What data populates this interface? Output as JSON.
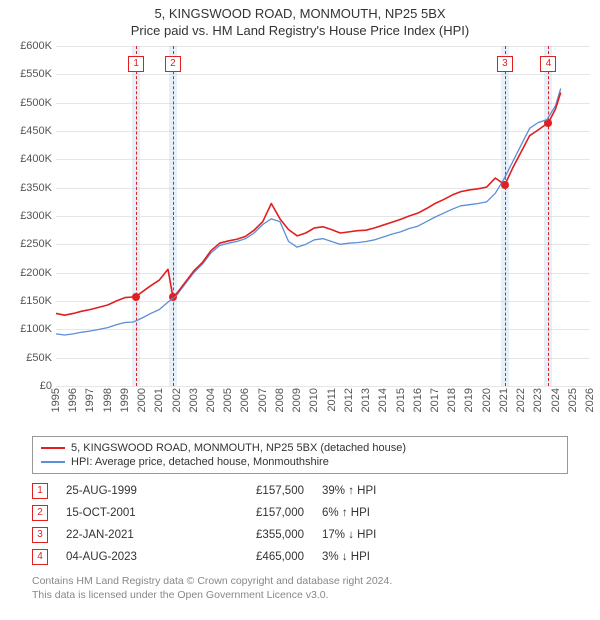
{
  "title": "5, KINGSWOOD ROAD, MONMOUTH, NP25 5BX",
  "subtitle": "Price paid vs. HM Land Registry's House Price Index (HPI)",
  "chart": {
    "type": "line",
    "x_domain": [
      1995,
      2026
    ],
    "y_domain": [
      0,
      600000
    ],
    "y_ticks": [
      0,
      50000,
      100000,
      150000,
      200000,
      250000,
      300000,
      350000,
      400000,
      450000,
      500000,
      550000,
      600000
    ],
    "y_tick_labels": [
      "£0",
      "£50K",
      "£100K",
      "£150K",
      "£200K",
      "£250K",
      "£300K",
      "£350K",
      "£400K",
      "£450K",
      "£500K",
      "£550K",
      "£600K"
    ],
    "x_ticks": [
      1995,
      1996,
      1997,
      1998,
      1999,
      2000,
      2001,
      2002,
      2003,
      2004,
      2005,
      2006,
      2007,
      2008,
      2009,
      2010,
      2011,
      2012,
      2013,
      2014,
      2015,
      2016,
      2017,
      2018,
      2019,
      2020,
      2021,
      2022,
      2023,
      2024,
      2025,
      2026
    ],
    "grid_color": "#e6e6e6",
    "background": "#ffffff",
    "series": [
      {
        "id": "hpi",
        "label": "HPI: Average price, detached house, Monmouthshire",
        "color": "#5b8fd6",
        "width": 1.3,
        "points": [
          [
            1995.0,
            92000
          ],
          [
            1995.5,
            90000
          ],
          [
            1996.0,
            92000
          ],
          [
            1996.5,
            95000
          ],
          [
            1997.0,
            97000
          ],
          [
            1997.5,
            100000
          ],
          [
            1998.0,
            103000
          ],
          [
            1998.5,
            108000
          ],
          [
            1999.0,
            112000
          ],
          [
            1999.5,
            113000
          ],
          [
            2000.0,
            120000
          ],
          [
            2000.5,
            128000
          ],
          [
            2001.0,
            135000
          ],
          [
            2001.5,
            148000
          ],
          [
            2002.0,
            160000
          ],
          [
            2002.5,
            180000
          ],
          [
            2003.0,
            200000
          ],
          [
            2003.5,
            215000
          ],
          [
            2004.0,
            235000
          ],
          [
            2004.5,
            248000
          ],
          [
            2005.0,
            252000
          ],
          [
            2005.5,
            255000
          ],
          [
            2006.0,
            260000
          ],
          [
            2006.5,
            270000
          ],
          [
            2007.0,
            285000
          ],
          [
            2007.5,
            295000
          ],
          [
            2008.0,
            290000
          ],
          [
            2008.5,
            255000
          ],
          [
            2009.0,
            245000
          ],
          [
            2009.5,
            250000
          ],
          [
            2010.0,
            258000
          ],
          [
            2010.5,
            260000
          ],
          [
            2011.0,
            255000
          ],
          [
            2011.5,
            250000
          ],
          [
            2012.0,
            252000
          ],
          [
            2012.5,
            253000
          ],
          [
            2013.0,
            255000
          ],
          [
            2013.5,
            258000
          ],
          [
            2014.0,
            263000
          ],
          [
            2014.5,
            268000
          ],
          [
            2015.0,
            272000
          ],
          [
            2015.5,
            278000
          ],
          [
            2016.0,
            282000
          ],
          [
            2016.5,
            290000
          ],
          [
            2017.0,
            298000
          ],
          [
            2017.5,
            305000
          ],
          [
            2018.0,
            312000
          ],
          [
            2018.5,
            318000
          ],
          [
            2019.0,
            320000
          ],
          [
            2019.5,
            322000
          ],
          [
            2020.0,
            325000
          ],
          [
            2020.5,
            340000
          ],
          [
            2021.0,
            365000
          ],
          [
            2021.5,
            395000
          ],
          [
            2022.0,
            425000
          ],
          [
            2022.5,
            455000
          ],
          [
            2023.0,
            465000
          ],
          [
            2023.5,
            470000
          ],
          [
            2024.0,
            495000
          ],
          [
            2024.3,
            525000
          ]
        ]
      },
      {
        "id": "property",
        "label": "5, KINGSWOOD ROAD, MONMOUTH, NP25 5BX (detached house)",
        "color": "#e02020",
        "width": 1.6,
        "points": [
          [
            1995.0,
            128000
          ],
          [
            1995.5,
            125000
          ],
          [
            1996.0,
            128000
          ],
          [
            1996.5,
            132000
          ],
          [
            1997.0,
            135000
          ],
          [
            1997.5,
            139000
          ],
          [
            1998.0,
            143000
          ],
          [
            1998.5,
            150000
          ],
          [
            1999.0,
            156000
          ],
          [
            1999.65,
            157500
          ],
          [
            2000.0,
            166000
          ],
          [
            2000.5,
            177000
          ],
          [
            2001.0,
            187000
          ],
          [
            2001.5,
            206000
          ],
          [
            2001.79,
            157000
          ],
          [
            2002.0,
            163000
          ],
          [
            2002.5,
            183000
          ],
          [
            2003.0,
            203000
          ],
          [
            2003.5,
            218000
          ],
          [
            2004.0,
            239000
          ],
          [
            2004.5,
            252000
          ],
          [
            2005.0,
            256000
          ],
          [
            2005.5,
            259000
          ],
          [
            2006.0,
            264000
          ],
          [
            2006.5,
            275000
          ],
          [
            2007.0,
            290000
          ],
          [
            2007.5,
            322000
          ],
          [
            2008.0,
            295000
          ],
          [
            2008.5,
            276000
          ],
          [
            2009.0,
            265000
          ],
          [
            2009.5,
            270000
          ],
          [
            2010.0,
            279000
          ],
          [
            2010.5,
            281000
          ],
          [
            2011.0,
            276000
          ],
          [
            2011.5,
            270000
          ],
          [
            2012.0,
            272000
          ],
          [
            2012.5,
            274000
          ],
          [
            2013.0,
            275000
          ],
          [
            2013.5,
            279000
          ],
          [
            2014.0,
            284000
          ],
          [
            2014.5,
            289000
          ],
          [
            2015.0,
            294000
          ],
          [
            2015.5,
            300000
          ],
          [
            2016.0,
            305000
          ],
          [
            2016.5,
            313000
          ],
          [
            2017.0,
            322000
          ],
          [
            2017.5,
            329000
          ],
          [
            2018.0,
            337000
          ],
          [
            2018.5,
            343000
          ],
          [
            2019.0,
            346000
          ],
          [
            2019.5,
            348000
          ],
          [
            2020.0,
            351000
          ],
          [
            2020.5,
            367000
          ],
          [
            2021.06,
            355000
          ],
          [
            2021.5,
            384000
          ],
          [
            2022.0,
            413000
          ],
          [
            2022.5,
            442000
          ],
          [
            2023.0,
            452000
          ],
          [
            2023.59,
            465000
          ],
          [
            2024.0,
            489000
          ],
          [
            2024.3,
            518000
          ]
        ]
      }
    ],
    "events": [
      {
        "n": "1",
        "x": 1999.65,
        "price": 157500,
        "date": "25-AUG-1999",
        "price_label": "£157,500",
        "diff": "39% ↑ HPI"
      },
      {
        "n": "2",
        "x": 2001.79,
        "price": 157000,
        "date": "15-OCT-2001",
        "price_label": "£157,000",
        "diff": "6% ↑ HPI"
      },
      {
        "n": "3",
        "x": 2021.06,
        "price": 355000,
        "date": "22-JAN-2021",
        "price_label": "£355,000",
        "diff": "17% ↓ HPI"
      },
      {
        "n": "4",
        "x": 2023.59,
        "price": 465000,
        "date": "04-AUG-2023",
        "price_label": "£465,000",
        "diff": "3% ↓ HPI"
      }
    ],
    "event_band_color": "rgba(160,190,230,0.25)",
    "event_line_color": "#e02020",
    "event_badge_border": "#e02020"
  },
  "footer_line1": "Contains HM Land Registry data © Crown copyright and database right 2024.",
  "footer_line2": "This data is licensed under the Open Government Licence v3.0."
}
